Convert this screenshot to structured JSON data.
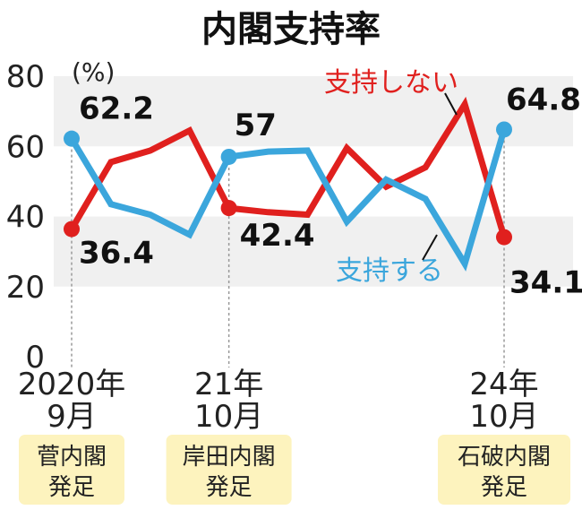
{
  "chart_data": {
    "type": "line",
    "title": "内閣支持率",
    "unit": "(%)",
    "ylim": [
      0,
      80
    ],
    "yticks": [
      0,
      20,
      40,
      60,
      80
    ],
    "x_labels": [
      {
        "index": 0,
        "line1": "2020年",
        "line2": "9月"
      },
      {
        "index": 4,
        "line1": "21年",
        "line2": "10月"
      },
      {
        "index": 11,
        "line1": "24年",
        "line2": "10月"
      }
    ],
    "series": [
      {
        "name": "支持しない",
        "color": "#e0201e",
        "values": [
          36.4,
          55.5,
          58.8,
          64.5,
          42.4,
          41.2,
          40.5,
          59.5,
          48.5,
          54,
          72,
          34.1
        ]
      },
      {
        "name": "支持する",
        "color": "#3ba6dc",
        "values": [
          62.2,
          43.5,
          40.5,
          34.8,
          57,
          58.5,
          58.8,
          38.5,
          50.5,
          45,
          26.5,
          64.8
        ]
      }
    ],
    "data_labels": [
      {
        "series": 0,
        "index": 0,
        "text": "36.4"
      },
      {
        "series": 1,
        "index": 0,
        "text": "62.2"
      },
      {
        "series": 0,
        "index": 4,
        "text": "42.4"
      },
      {
        "series": 1,
        "index": 4,
        "text": "57"
      },
      {
        "series": 1,
        "index": 11,
        "text": "64.8"
      },
      {
        "series": 0,
        "index": 11,
        "text": "34.1"
      }
    ],
    "events": [
      {
        "index": 0,
        "line1": "菅内閣",
        "line2": "発足"
      },
      {
        "index": 4,
        "line1": "岸田内閣",
        "line2": "発足"
      },
      {
        "index": 11,
        "line1": "石破内閣",
        "line2": "発足"
      }
    ],
    "badge_color": "#fdf3be",
    "band_color": "#f0f0f0",
    "grid": false
  }
}
